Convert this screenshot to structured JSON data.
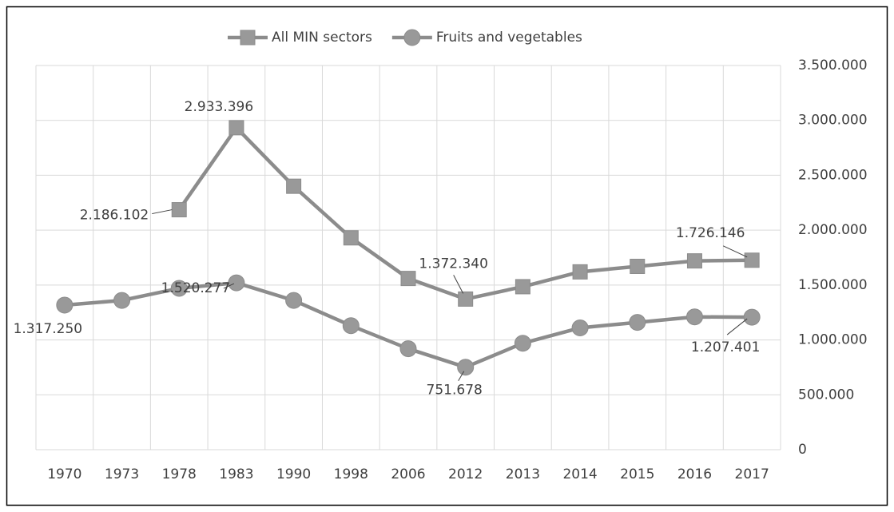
{
  "chart_data": {
    "type": "line",
    "categories": [
      "1970",
      "1973",
      "1978",
      "1983",
      "1990",
      "1998",
      "2006",
      "2012",
      "2013",
      "2014",
      "2015",
      "2016",
      "2017"
    ],
    "series": [
      {
        "name": "All MIN sectors",
        "color": "#8c8c8c",
        "marker": "square",
        "values": [
          null,
          null,
          2186102,
          2933396,
          2400000,
          1930000,
          1560000,
          1372340,
          1485000,
          1620000,
          1670000,
          1720000,
          1726146
        ],
        "value_labels": [
          null,
          null,
          "2.186.102",
          "2.933.396",
          null,
          null,
          null,
          "1.372.340",
          null,
          null,
          null,
          null,
          "1.726.146"
        ]
      },
      {
        "name": "Fruits and vegetables",
        "color": "#8c8c8c",
        "marker": "circle",
        "values": [
          1317250,
          1360000,
          1470000,
          1520277,
          1360000,
          1130000,
          920000,
          751678,
          970000,
          1110000,
          1160000,
          1210000,
          1207401
        ],
        "value_labels": [
          "1.317.250",
          null,
          null,
          "1.520.277",
          null,
          null,
          null,
          "751.678",
          null,
          null,
          null,
          null,
          "1.207.401"
        ]
      }
    ],
    "ylim": [
      0,
      3500000
    ],
    "yticks": [
      0,
      {
        "value": 500000,
        "label": "500.000"
      },
      {
        "value": 1000000,
        "label": "1.000.000"
      },
      {
        "value": 1500000,
        "label": "1.500.000"
      },
      {
        "value": 2000000,
        "label": "2.000.000"
      },
      {
        "value": 2500000,
        "label": "2.500.000"
      },
      {
        "value": 3000000,
        "label": "3.000.000"
      },
      {
        "value": 3500000,
        "label": "3.500.000"
      }
    ],
    "y_axis_side": "right",
    "grid": true,
    "legend": "top"
  }
}
